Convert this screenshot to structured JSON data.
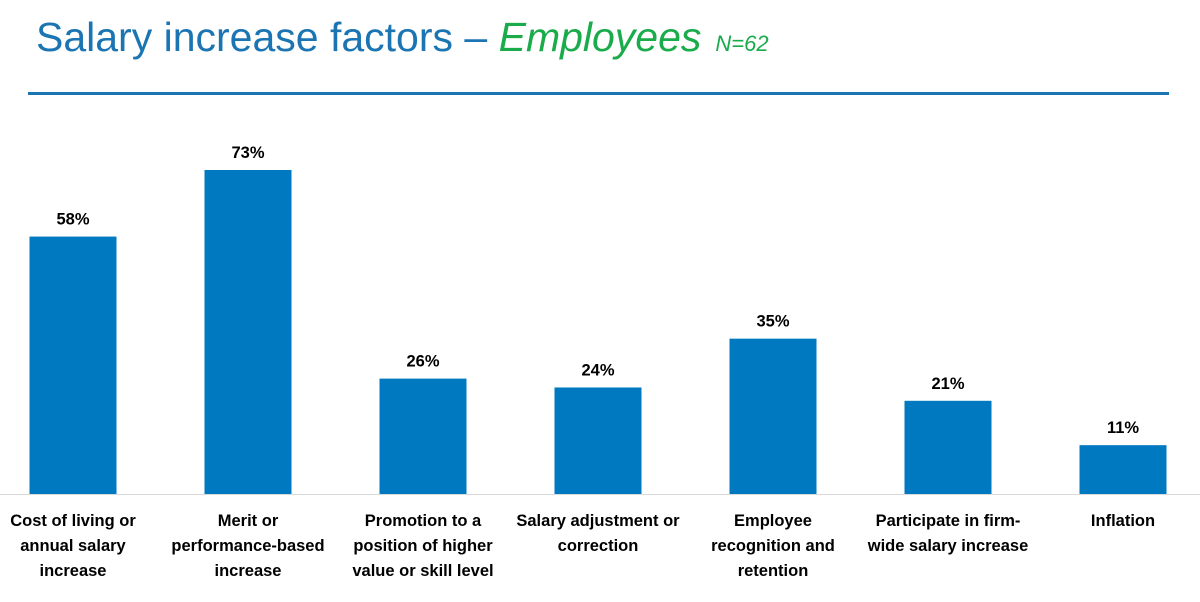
{
  "title": {
    "main": "Salary increase factors – ",
    "group": "Employees",
    "n": "N=62"
  },
  "colors": {
    "bar": "#0079c1",
    "title": "#1b75b3",
    "accent": "#1aab4b"
  },
  "chart_data": {
    "type": "bar",
    "title": "Salary increase factors – Employees",
    "subtitle": "N=62",
    "categories": [
      "Cost of living or annual salary increase",
      "Merit or performance-based increase",
      "Promotion to a position of higher value or skill level",
      "Salary adjustment or correction",
      "Employee recognition and retention",
      "Participate in firm-wide salary increase",
      "Inflation"
    ],
    "category_lines": [
      [
        "Cost of living or",
        "annual salary",
        "increase"
      ],
      [
        "Merit or",
        "performance-based",
        "increase"
      ],
      [
        "Promotion to a",
        "position of higher",
        "value or skill level"
      ],
      [
        "Salary adjustment or",
        "correction"
      ],
      [
        "Employee",
        "recognition and",
        "retention"
      ],
      [
        "Participate in firm-",
        "wide salary increase"
      ],
      [
        "Inflation"
      ]
    ],
    "values": [
      58,
      73,
      26,
      24,
      35,
      21,
      11
    ],
    "data_labels": [
      "58%",
      "73%",
      "26%",
      "24%",
      "35%",
      "21%",
      "11%"
    ],
    "unit": "%",
    "ylim": [
      0,
      73
    ],
    "grid": false,
    "xlabel": "",
    "ylabel": ""
  }
}
